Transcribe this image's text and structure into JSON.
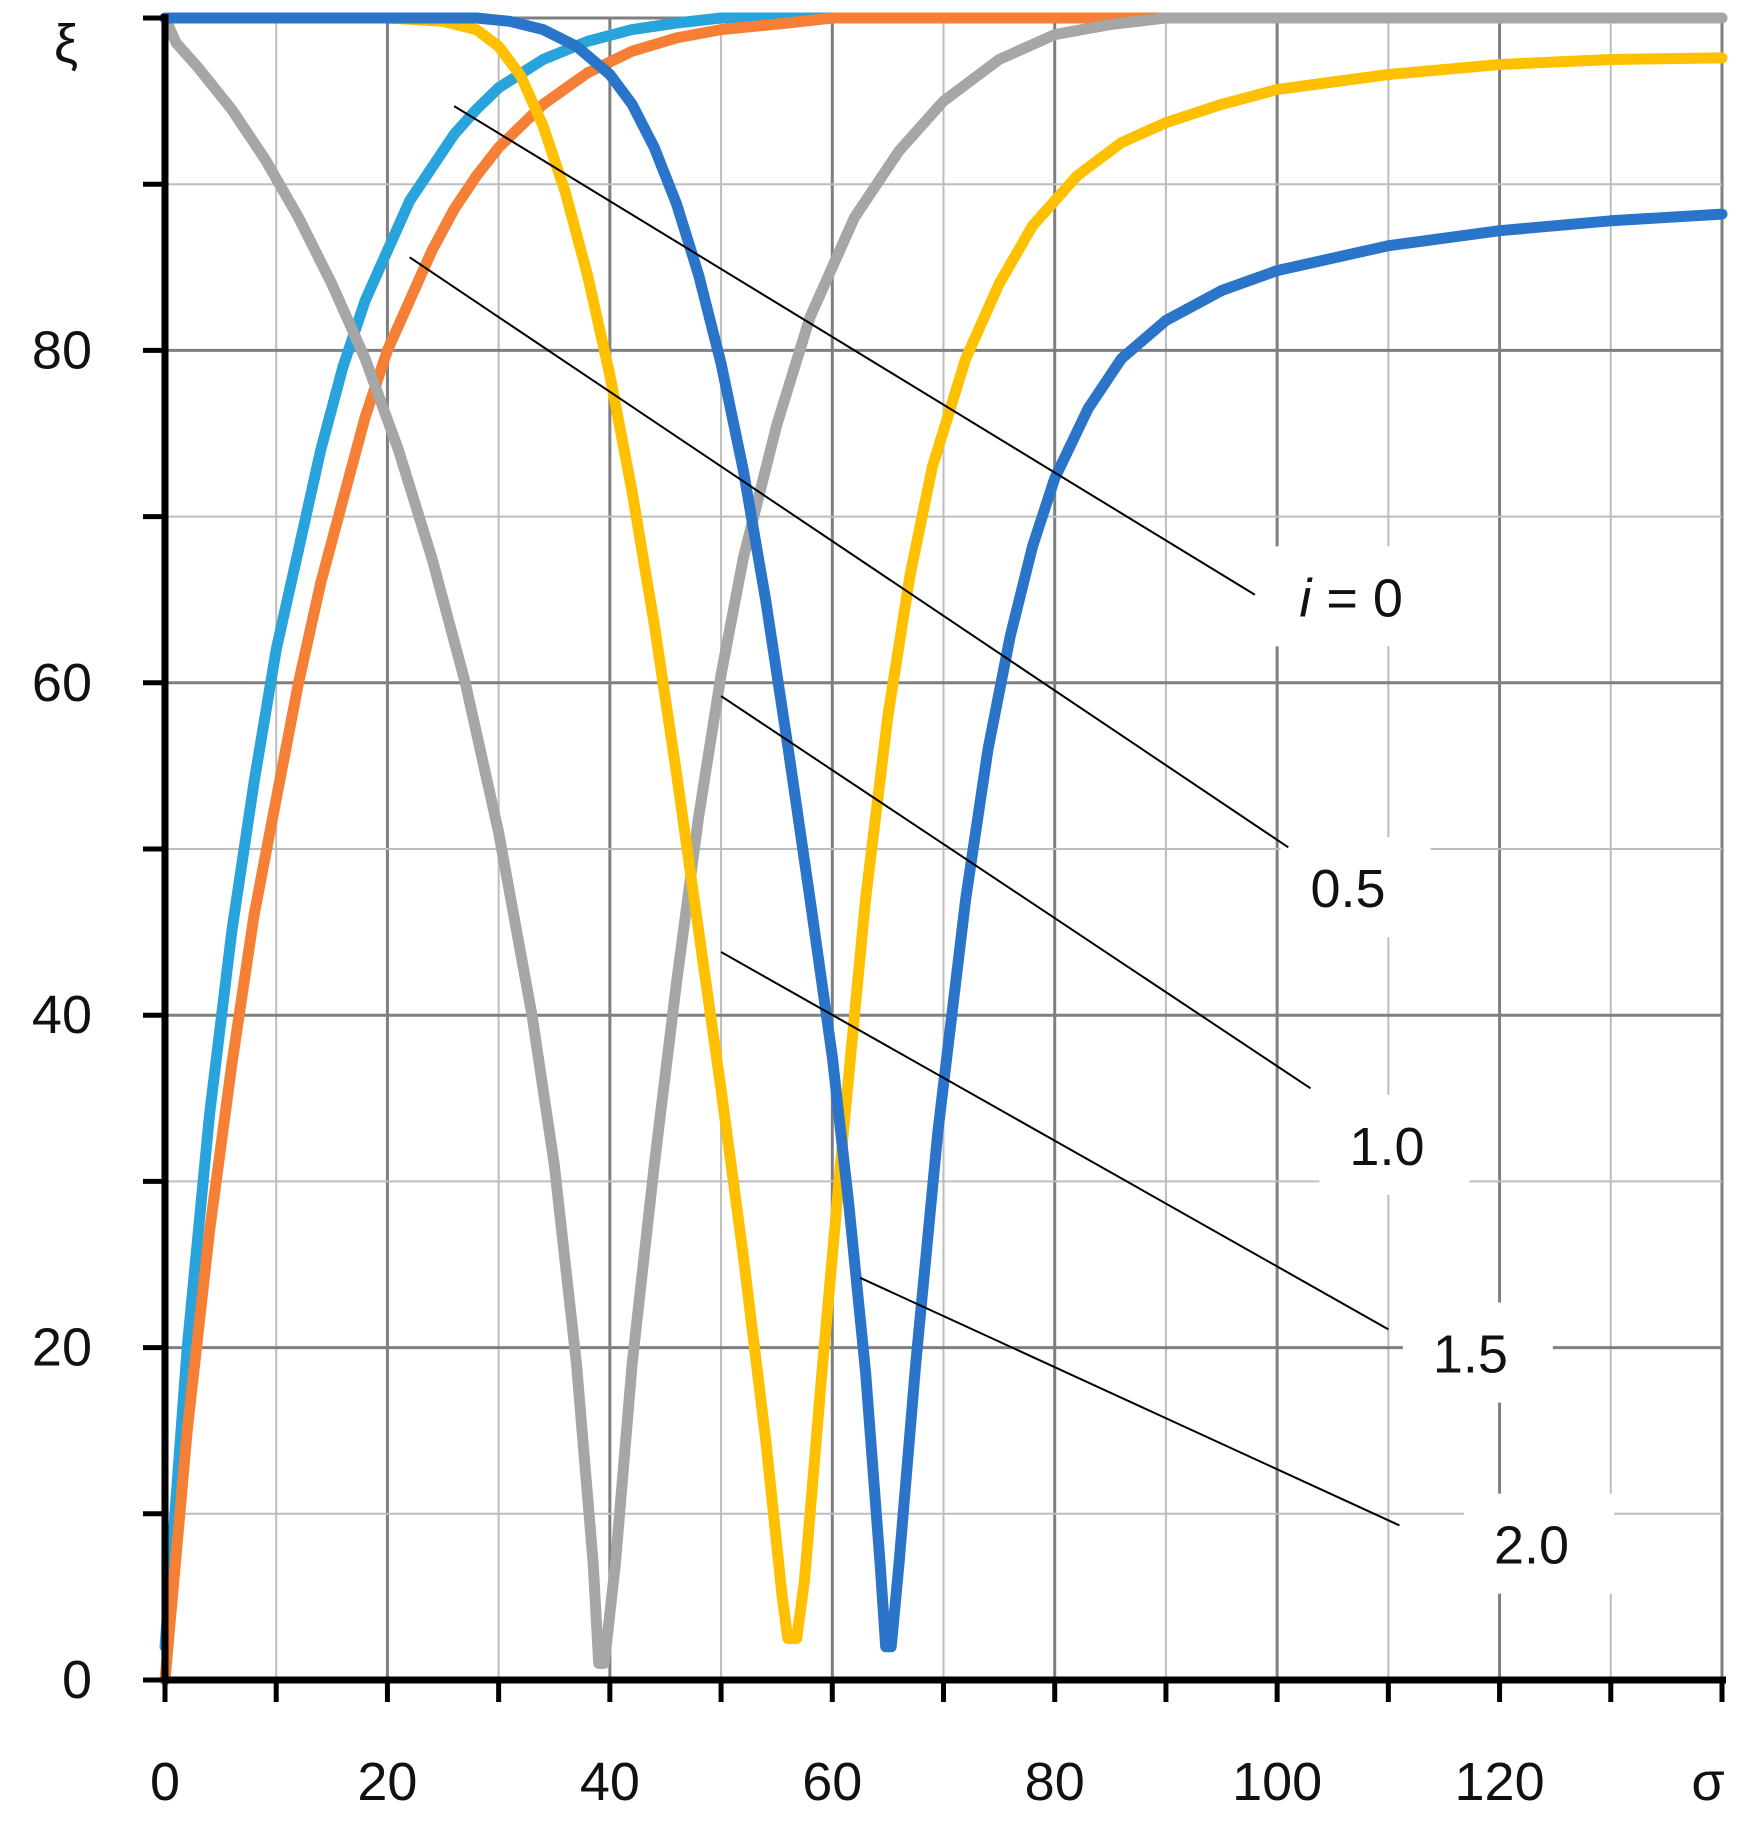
{
  "chart_data": {
    "type": "line",
    "xlabel": "σ",
    "ylabel": "ξ",
    "xlim": [
      0,
      140
    ],
    "ylim": [
      0,
      100
    ],
    "x_ticks": [
      0,
      20,
      40,
      60,
      80,
      100,
      120
    ],
    "x_tick_labels": [
      "0",
      "20",
      "40",
      "60",
      "80",
      "100",
      "120"
    ],
    "y_ticks": [
      0,
      20,
      40,
      60,
      80
    ],
    "y_tick_labels": [
      "0",
      "20",
      "40",
      "60",
      "80"
    ],
    "grid": true,
    "colors": {
      "0.5": "#29a3dc",
      "0": "#f47f35",
      "2.0": "#a6a6a6",
      "1.5": "#ffc000",
      "1.0": "#2a75c9"
    },
    "series": [
      {
        "color": "#29a3dc",
        "points": [
          [
            0,
            2
          ],
          [
            2,
            20
          ],
          [
            4,
            34
          ],
          [
            6,
            45
          ],
          [
            8,
            54
          ],
          [
            10,
            62
          ],
          [
            12,
            68
          ],
          [
            14,
            74
          ],
          [
            16,
            79
          ],
          [
            18,
            83
          ],
          [
            20,
            86
          ],
          [
            22,
            89
          ],
          [
            24,
            91
          ],
          [
            26,
            93
          ],
          [
            28,
            94.5
          ],
          [
            30,
            95.8
          ],
          [
            34,
            97.5
          ],
          [
            38,
            98.6
          ],
          [
            42,
            99.3
          ],
          [
            46,
            99.7
          ],
          [
            50,
            100
          ],
          [
            60,
            100
          ]
        ]
      },
      {
        "color": "#f47f35",
        "points": [
          [
            0,
            0
          ],
          [
            2,
            15
          ],
          [
            4,
            27
          ],
          [
            6,
            37
          ],
          [
            8,
            46
          ],
          [
            10,
            53
          ],
          [
            12,
            60
          ],
          [
            14,
            66
          ],
          [
            16,
            71
          ],
          [
            18,
            76
          ],
          [
            20,
            80
          ],
          [
            22,
            83
          ],
          [
            24,
            86
          ],
          [
            26,
            88.5
          ],
          [
            28,
            90.5
          ],
          [
            30,
            92.2
          ],
          [
            34,
            94.8
          ],
          [
            38,
            96.7
          ],
          [
            42,
            98
          ],
          [
            46,
            98.8
          ],
          [
            50,
            99.3
          ],
          [
            56,
            99.7
          ],
          [
            60,
            100
          ],
          [
            90,
            100
          ]
        ]
      },
      {
        "color": "#a6a6a6",
        "points": [
          [
            0,
            100
          ],
          [
            1,
            98.5
          ],
          [
            3,
            97
          ],
          [
            6,
            94.5
          ],
          [
            9,
            91.5
          ],
          [
            12,
            88
          ],
          [
            15,
            84
          ],
          [
            18,
            79.5
          ],
          [
            21,
            74
          ],
          [
            24,
            67.5
          ],
          [
            27,
            60
          ],
          [
            30,
            51
          ],
          [
            33,
            40
          ],
          [
            35,
            31
          ],
          [
            37,
            19
          ],
          [
            38.5,
            7
          ],
          [
            39,
            1
          ],
          [
            39.5,
            1
          ],
          [
            40.5,
            7
          ],
          [
            42,
            19
          ],
          [
            44,
            31
          ],
          [
            46,
            42
          ],
          [
            48,
            52
          ],
          [
            50,
            60.5
          ],
          [
            52,
            67.5
          ],
          [
            55,
            75.5
          ],
          [
            58,
            82
          ],
          [
            62,
            88
          ],
          [
            66,
            92
          ],
          [
            70,
            95
          ],
          [
            75,
            97.5
          ],
          [
            80,
            99
          ],
          [
            85,
            99.6
          ],
          [
            90,
            100
          ],
          [
            95,
            100
          ],
          [
            100,
            100
          ],
          [
            140,
            100
          ]
        ]
      },
      {
        "color": "#ffc000",
        "points": [
          [
            0,
            100
          ],
          [
            15,
            100
          ],
          [
            20,
            100
          ],
          [
            25,
            99.8
          ],
          [
            28,
            99.3
          ],
          [
            30,
            98.3
          ],
          [
            32,
            96.5
          ],
          [
            34,
            93.5
          ],
          [
            36,
            89.5
          ],
          [
            38,
            84.5
          ],
          [
            40,
            78.5
          ],
          [
            42,
            71.5
          ],
          [
            44,
            63.5
          ],
          [
            46,
            54.5
          ],
          [
            48,
            45
          ],
          [
            50,
            35.5
          ],
          [
            52,
            25.5
          ],
          [
            54,
            14.5
          ],
          [
            55.5,
            5
          ],
          [
            56,
            2.5
          ],
          [
            56.8,
            2.5
          ],
          [
            57.5,
            6
          ],
          [
            59,
            18
          ],
          [
            61,
            33
          ],
          [
            63,
            47
          ],
          [
            65,
            58
          ],
          [
            67,
            66.5
          ],
          [
            69,
            73
          ],
          [
            72,
            79.5
          ],
          [
            75,
            84
          ],
          [
            78,
            87.5
          ],
          [
            82,
            90.5
          ],
          [
            86,
            92.5
          ],
          [
            90,
            93.7
          ],
          [
            95,
            94.8
          ],
          [
            100,
            95.7
          ],
          [
            110,
            96.6
          ],
          [
            120,
            97.2
          ],
          [
            130,
            97.5
          ],
          [
            140,
            97.6
          ]
        ]
      },
      {
        "color": "#2a75c9",
        "points": [
          [
            0,
            100
          ],
          [
            20,
            100
          ],
          [
            28,
            100
          ],
          [
            31,
            99.8
          ],
          [
            34,
            99.3
          ],
          [
            37,
            98.3
          ],
          [
            40,
            96.6
          ],
          [
            42,
            94.8
          ],
          [
            44,
            92.2
          ],
          [
            46,
            88.8
          ],
          [
            48,
            84.5
          ],
          [
            50,
            79.2
          ],
          [
            52,
            72.8
          ],
          [
            54,
            65
          ],
          [
            56,
            56.2
          ],
          [
            58,
            47
          ],
          [
            60,
            37.5
          ],
          [
            61.5,
            28.5
          ],
          [
            63,
            18.5
          ],
          [
            64.3,
            7
          ],
          [
            64.8,
            2
          ],
          [
            65.3,
            2
          ],
          [
            66,
            7
          ],
          [
            67.5,
            19
          ],
          [
            69.5,
            33
          ],
          [
            72,
            47
          ],
          [
            74,
            56
          ],
          [
            76,
            62.8
          ],
          [
            78,
            68.2
          ],
          [
            80,
            72.3
          ],
          [
            83,
            76.5
          ],
          [
            86,
            79.5
          ],
          [
            90,
            81.8
          ],
          [
            95,
            83.6
          ],
          [
            100,
            84.8
          ],
          [
            110,
            86.3
          ],
          [
            120,
            87.2
          ],
          [
            130,
            87.8
          ],
          [
            140,
            88.2
          ]
        ]
      }
    ],
    "annotations": [
      {
        "label": "i",
        "suffix": " = 0",
        "italic_prefix": true,
        "from": [
          26,
          94.7
        ],
        "to": [
          98,
          65.3
        ],
        "label_at": [
          102,
          64
        ]
      },
      {
        "label": "0.5",
        "from": [
          22,
          85.6
        ],
        "to": [
          101,
          50.1
        ],
        "label_at": [
          103,
          46.5
        ]
      },
      {
        "label": "1.0",
        "from": [
          50,
          59.2
        ],
        "to": [
          103,
          35.6
        ],
        "label_at": [
          106.5,
          31
        ]
      },
      {
        "label": "1.5",
        "from": [
          50,
          43.8
        ],
        "to": [
          110,
          21.1
        ],
        "label_at": [
          114,
          18.5
        ]
      },
      {
        "label": "2.0",
        "from": [
          62.5,
          24.2
        ],
        "to": [
          111,
          9.3
        ],
        "label_at": [
          119.5,
          7
        ]
      }
    ]
  }
}
